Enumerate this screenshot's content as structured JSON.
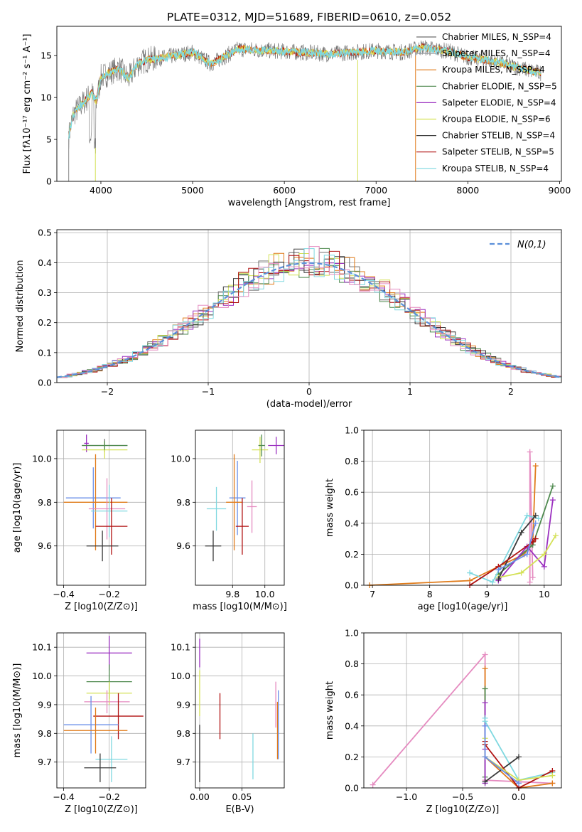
{
  "figure_title": "PLATE=0312, MJD=51689, FIBERID=0610, z=0.052",
  "colors": {
    "Chabrier MILES": "#6f6f6f",
    "Salpeter MILES": "#9aa0a6",
    "Kroupa MILES": "#e07b1a",
    "Chabrier ELODIE": "#4f8a4f",
    "Salpeter ELODIE": "#9b30c0",
    "Kroupa ELODIE": "#d4e157",
    "Chabrier STELIB": "#3a3a3a",
    "Salpeter STELIB": "#b01010",
    "Kroupa STELIB": "#7fd8e0",
    "blue": "#6a8fe8",
    "pink": "#e58bc0",
    "normal": "#5b8fd9"
  },
  "chart_data": [
    {
      "id": "spectrum",
      "type": "line",
      "title": "PLATE=0312, MJD=51689, FIBERID=0610, z=0.052",
      "xlabel": "wavelength [Angstrom, rest frame]",
      "ylabel": "Flux [fλ10⁻¹⁷ erg cm⁻² s⁻¹ A⁻¹]",
      "xlim": [
        3520,
        9020
      ],
      "ylim": [
        0,
        18.5
      ],
      "xticks": [
        4000,
        5000,
        6000,
        7000,
        8000,
        9000
      ],
      "yticks": [
        0,
        5,
        10,
        15
      ],
      "legend": [
        "Chabrier MILES, N_SSP=4",
        "Salpeter MILES, N_SSP=4",
        "Kroupa MILES, N_SSP=4",
        "Chabrier ELODIE, N_SSP=5",
        "Salpeter ELODIE, N_SSP=4",
        "Kroupa ELODIE, N_SSP=6",
        "Chabrier STELIB, N_SSP=4",
        "Salpeter STELIB, N_SSP=5",
        "Kroupa STELIB, N_SSP=4"
      ],
      "continuum": {
        "x": [
          3650,
          3700,
          3800,
          3900,
          3950,
          4000,
          4100,
          4200,
          4300,
          4400,
          4500,
          4700,
          5000,
          5200,
          5500,
          6000,
          6500,
          7000,
          7300,
          7500,
          7800,
          8000,
          8300,
          8500,
          8800
        ],
        "y": [
          5.5,
          8,
          9.3,
          10.5,
          9.5,
          12.4,
          13,
          13.5,
          12.2,
          14,
          14.5,
          14.8,
          15.4,
          14,
          15.8,
          15.5,
          15.2,
          15.6,
          15.4,
          16,
          15.5,
          14.8,
          14.3,
          13.7,
          12.9
        ]
      }
    },
    {
      "id": "residuals",
      "type": "histogram",
      "xlabel": "(data-model)/error",
      "ylabel": "Normed distribution",
      "xlim": [
        -2.5,
        2.5
      ],
      "ylim": [
        0,
        0.51
      ],
      "xticks": [
        -2,
        -1,
        0,
        1,
        2
      ],
      "yticks": [
        0.0,
        0.1,
        0.2,
        0.3,
        0.4,
        0.5
      ],
      "legend": "N(0,1)",
      "bin_width": 0.1
    },
    {
      "id": "z_age",
      "type": "errorbar",
      "xlabel": "Z [log10(Z/Z⊙)]",
      "ylabel": "age  [log10(age/yr)]",
      "xlim": [
        -0.43,
        -0.04
      ],
      "ylim": [
        9.42,
        10.13
      ],
      "xticks": [
        -0.4,
        -0.2
      ],
      "yticks": [
        9.6,
        9.8,
        10.0
      ],
      "points": [
        {
          "model": "Chabrier MILES",
          "x": -0.22,
          "y": 10.06,
          "xerr": 0.1,
          "yerr": 0.03
        },
        {
          "model": "Salpeter ELODIE",
          "x": -0.3,
          "y": 10.07,
          "xerr": 0.01,
          "yerr": 0.04
        },
        {
          "model": "Kroupa ELODIE",
          "x": -0.22,
          "y": 10.04,
          "xerr": 0.1,
          "yerr": 0.04
        },
        {
          "model": "Chabrier ELODIE",
          "x": -0.22,
          "y": 10.06,
          "xerr": 0.1,
          "yerr": 0.02
        },
        {
          "model": "blue",
          "x": -0.27,
          "y": 9.82,
          "xerr": 0.12,
          "yerr": 0.14
        },
        {
          "model": "Kroupa MILES",
          "x": -0.26,
          "y": 9.8,
          "xerr": 0.14,
          "yerr": 0.22
        },
        {
          "model": "pink",
          "x": -0.21,
          "y": 9.77,
          "xerr": 0.08,
          "yerr": 0.14
        },
        {
          "model": "Kroupa STELIB",
          "x": -0.2,
          "y": 9.76,
          "xerr": 0.08,
          "yerr": 0.12
        },
        {
          "model": "Salpeter STELIB",
          "x": -0.19,
          "y": 9.69,
          "xerr": 0.07,
          "yerr": 0.13
        },
        {
          "model": "Chabrier STELIB",
          "x": -0.23,
          "y": 9.6,
          "xerr": 0.07,
          "yerr": 0.07
        }
      ]
    },
    {
      "id": "mass_age",
      "type": "errorbar",
      "xlabel": "mass [log10(M/M⊙)]",
      "ylabel": "",
      "xlim": [
        9.57,
        10.12
      ],
      "ylim": [
        9.42,
        10.13
      ],
      "xticks": [
        9.8,
        10.0
      ],
      "yticks": [
        9.6,
        9.8,
        10.0
      ],
      "points": [
        {
          "model": "Kroupa ELODIE",
          "x": 9.97,
          "y": 10.04,
          "xerr": 0.05,
          "yerr": 0.06
        },
        {
          "model": "Chabrier ELODIE",
          "x": 9.98,
          "y": 10.06,
          "xerr": 0.02,
          "yerr": 0.05
        },
        {
          "model": "Salpeter ELODIE",
          "x": 10.07,
          "y": 10.06,
          "xerr": 0.05,
          "yerr": 0.04
        },
        {
          "model": "blue",
          "x": 9.83,
          "y": 9.82,
          "xerr": 0.05,
          "yerr": 0.17
        },
        {
          "model": "Kroupa MILES",
          "x": 9.81,
          "y": 9.8,
          "xerr": 0.05,
          "yerr": 0.22
        },
        {
          "model": "pink",
          "x": 9.92,
          "y": 9.78,
          "xerr": 0.03,
          "yerr": 0.12
        },
        {
          "model": "Kroupa STELIB",
          "x": 9.7,
          "y": 9.77,
          "xerr": 0.06,
          "yerr": 0.1
        },
        {
          "model": "Salpeter STELIB",
          "x": 9.86,
          "y": 9.69,
          "xerr": 0.04,
          "yerr": 0.13
        },
        {
          "model": "Chabrier STELIB",
          "x": 9.68,
          "y": 9.6,
          "xerr": 0.05,
          "yerr": 0.07
        }
      ]
    },
    {
      "id": "age_weight",
      "type": "line",
      "xlabel": "age  [log10(age/yr)]",
      "ylabel": "mass weight",
      "xlim": [
        6.85,
        10.3
      ],
      "ylim": [
        0,
        1.0
      ],
      "xticks": [
        7,
        8,
        9,
        10
      ],
      "yticks": [
        0.0,
        0.2,
        0.4,
        0.6,
        0.8,
        1.0
      ],
      "series": [
        {
          "model": "Kroupa MILES",
          "x": [
            6.95,
            8.7,
            9.2,
            9.65,
            9.8,
            9.85
          ],
          "y": [
            0.0,
            0.03,
            0.12,
            0.2,
            0.28,
            0.77
          ]
        },
        {
          "model": "pink",
          "x": [
            9.75,
            9.75,
            9.8
          ],
          "y": [
            0.02,
            0.86,
            0.05
          ]
        },
        {
          "model": "Chabrier ELODIE",
          "x": [
            9.2,
            9.8,
            10.15
          ],
          "y": [
            0.07,
            0.26,
            0.64
          ]
        },
        {
          "model": "Salpeter ELODIE",
          "x": [
            9.2,
            9.7,
            10.0,
            10.15
          ],
          "y": [
            0.03,
            0.25,
            0.12,
            0.55
          ]
        },
        {
          "model": "Kroupa ELODIE",
          "x": [
            9.2,
            9.6,
            10.0,
            10.2
          ],
          "y": [
            0.05,
            0.08,
            0.2,
            0.32
          ]
        },
        {
          "model": "Kroupa STELIB",
          "x": [
            8.7,
            9.1,
            9.7,
            9.9
          ],
          "y": [
            0.08,
            0.02,
            0.45,
            0.43
          ]
        },
        {
          "model": "Chabrier STELIB",
          "x": [
            9.2,
            9.6,
            9.85
          ],
          "y": [
            0.04,
            0.34,
            0.45
          ]
        },
        {
          "model": "Salpeter STELIB",
          "x": [
            8.7,
            9.2,
            9.8,
            9.85
          ],
          "y": [
            0.0,
            0.12,
            0.28,
            0.3
          ]
        },
        {
          "model": "blue",
          "x": [
            9.2,
            9.7,
            9.85
          ],
          "y": [
            0.1,
            0.2,
            0.4
          ]
        }
      ]
    },
    {
      "id": "z_mass",
      "type": "errorbar",
      "xlabel": "Z [log10(Z/Z⊙)]",
      "ylabel": "mass [log10(M/M⊙)]",
      "xlim": [
        -0.43,
        -0.04
      ],
      "ylim": [
        9.61,
        10.15
      ],
      "xticks": [
        -0.4,
        -0.2
      ],
      "yticks": [
        9.7,
        9.8,
        9.9,
        10.0,
        10.1
      ],
      "points": [
        {
          "model": "Salpeter ELODIE",
          "x": -0.2,
          "y": 10.08,
          "xerr": 0.1,
          "yerr": 0.06
        },
        {
          "model": "Chabrier ELODIE",
          "x": -0.2,
          "y": 9.98,
          "xerr": 0.1,
          "yerr": 0.06
        },
        {
          "model": "Kroupa ELODIE",
          "x": -0.2,
          "y": 9.94,
          "xerr": 0.1,
          "yerr": 0.04
        },
        {
          "model": "pink",
          "x": -0.21,
          "y": 9.91,
          "xerr": 0.1,
          "yerr": 0.04
        },
        {
          "model": "Salpeter STELIB",
          "x": -0.16,
          "y": 9.86,
          "xerr": 0.11,
          "yerr": 0.08
        },
        {
          "model": "blue",
          "x": -0.28,
          "y": 9.83,
          "xerr": 0.12,
          "yerr": 0.1
        },
        {
          "model": "Kroupa MILES",
          "x": -0.26,
          "y": 9.81,
          "xerr": 0.14,
          "yerr": 0.08
        },
        {
          "model": "Kroupa STELIB",
          "x": -0.19,
          "y": 9.71,
          "xerr": 0.07,
          "yerr": 0.08
        },
        {
          "model": "Chabrier STELIB",
          "x": -0.24,
          "y": 9.68,
          "xerr": 0.07,
          "yerr": 0.05
        }
      ]
    },
    {
      "id": "ebv_mass",
      "type": "errorbar",
      "xlabel": "E(B-V)",
      "ylabel": "",
      "xlim": [
        -0.005,
        0.1
      ],
      "ylim": [
        9.61,
        10.15
      ],
      "xticks": [
        0.0,
        0.05
      ],
      "yticks": [
        9.7,
        9.8,
        9.9,
        10.0,
        10.1
      ],
      "points": [
        {
          "model": "Salpeter ELODIE",
          "x": 0.0,
          "y": 10.08,
          "xerr": 0.0,
          "yerr": 0.05
        },
        {
          "model": "Kroupa ELODIE",
          "x": 0.0,
          "y": 9.94,
          "xerr": 0.0,
          "yerr": 0.08
        },
        {
          "model": "Chabrier STELIB",
          "x": 0.0,
          "y": 9.73,
          "xerr": 0.0,
          "yerr": 0.1
        },
        {
          "model": "Salpeter STELIB",
          "x": 0.024,
          "y": 9.86,
          "xerr": 0.0,
          "yerr": 0.08
        },
        {
          "model": "Kroupa STELIB",
          "x": 0.063,
          "y": 9.72,
          "xerr": 0.0,
          "yerr": 0.08
        },
        {
          "model": "pink",
          "x": 0.09,
          "y": 9.9,
          "xerr": 0.0,
          "yerr": 0.08
        },
        {
          "model": "Kroupa MILES",
          "x": 0.092,
          "y": 9.81,
          "xerr": 0.0,
          "yerr": 0.1
        },
        {
          "model": "blue",
          "x": 0.093,
          "y": 9.83,
          "xerr": 0.0,
          "yerr": 0.12
        }
      ]
    },
    {
      "id": "z_weight",
      "type": "line",
      "xlabel": "Z [log10(Z/Z⊙)]",
      "ylabel": "mass weight",
      "xlim": [
        -1.38,
        0.38
      ],
      "ylim": [
        0,
        1.0
      ],
      "xticks": [
        -1.0,
        -0.5,
        0.0
      ],
      "yticks": [
        0.0,
        0.2,
        0.4,
        0.6,
        0.8,
        1.0
      ],
      "series": [
        {
          "model": "pink",
          "x": [
            -1.3,
            -0.3,
            -0.3,
            0.3
          ],
          "y": [
            0.02,
            0.86,
            0.05,
            0.03
          ]
        },
        {
          "model": "Kroupa MILES",
          "x": [
            -0.3,
            -0.3,
            0.0,
            0.3
          ],
          "y": [
            0.77,
            0.2,
            0.0,
            0.03
          ]
        },
        {
          "model": "Chabrier ELODIE",
          "x": [
            -0.3,
            -0.3
          ],
          "y": [
            0.64,
            0.07
          ]
        },
        {
          "model": "Salpeter ELODIE",
          "x": [
            -0.3,
            -0.3,
            -0.3
          ],
          "y": [
            0.55,
            0.25,
            0.03
          ]
        },
        {
          "model": "Kroupa STELIB",
          "x": [
            -0.3,
            -0.3,
            0.0,
            0.3
          ],
          "y": [
            0.45,
            0.43,
            0.05,
            0.1
          ]
        },
        {
          "model": "Chabrier STELIB",
          "x": [
            -0.3,
            0.0
          ],
          "y": [
            0.04,
            0.2
          ]
        },
        {
          "model": "Salpeter STELIB",
          "x": [
            -0.3,
            -0.3,
            0.0,
            0.3
          ],
          "y": [
            0.3,
            0.28,
            0.0,
            0.11
          ]
        },
        {
          "model": "Kroupa ELODIE",
          "x": [
            -0.3,
            -0.3,
            0.0,
            0.3
          ],
          "y": [
            0.32,
            0.2,
            0.05,
            0.08
          ]
        },
        {
          "model": "blue",
          "x": [
            -0.3,
            -0.3,
            0.0
          ],
          "y": [
            0.4,
            0.2,
            0.03
          ]
        }
      ]
    }
  ]
}
